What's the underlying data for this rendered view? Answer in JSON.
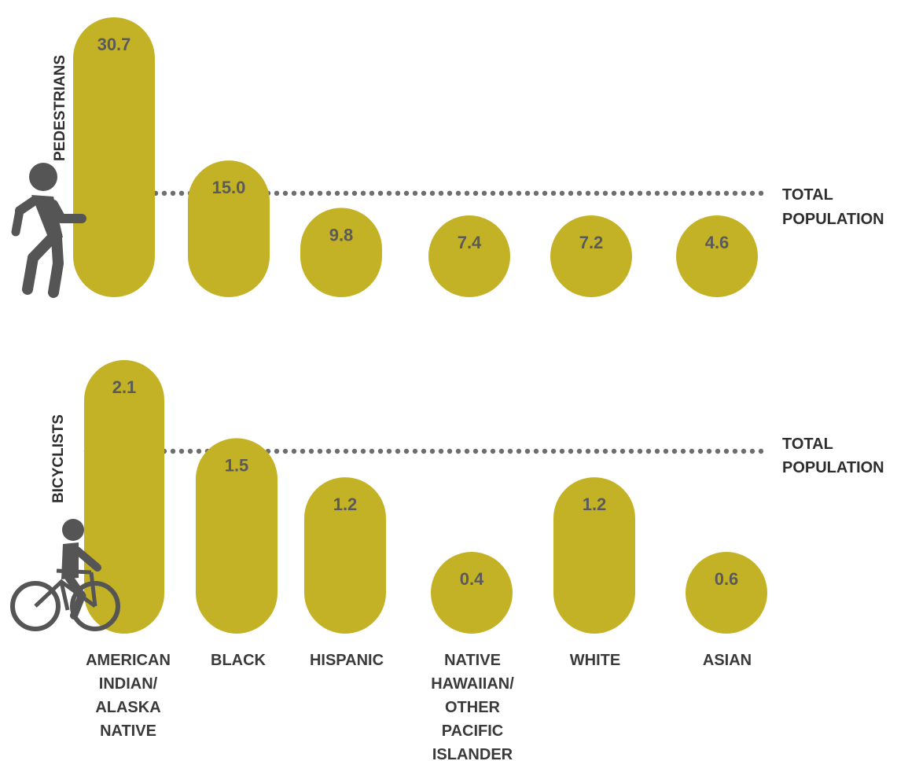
{
  "colors": {
    "bar": "#c4b226",
    "text": "#3a3a3a",
    "value_text": "#5a5a5a",
    "dots": "#555555",
    "icon": "#555555"
  },
  "icons": [
    "pedestrian-icon",
    "bicyclist-icon"
  ],
  "chart_data": [
    {
      "type": "bar",
      "label": "PEDESTRIANS",
      "categories": [
        "AMERICAN INDIAN/ ALASKA NATIVE",
        "BLACK",
        "HISPANIC",
        "NATIVE HAWAIIAN/ OTHER PACIFIC ISLANDER",
        "WHITE",
        "ASIAN"
      ],
      "values": [
        30.7,
        15.0,
        9.8,
        7.4,
        7.2,
        4.6
      ],
      "value_labels": [
        "30.7",
        "15.0",
        "9.8",
        "7.4",
        "7.2",
        "4.6"
      ],
      "reference_line": {
        "label_lines": [
          "TOTAL",
          "POPULATION"
        ],
        "value": 11.4
      },
      "grid": false
    },
    {
      "type": "bar",
      "label": "BICYCLISTS",
      "categories": [
        "AMERICAN INDIAN/ ALASKA NATIVE",
        "BLACK",
        "HISPANIC",
        "NATIVE HAWAIIAN/ OTHER PACIFIC ISLANDER",
        "WHITE",
        "ASIAN"
      ],
      "values": [
        2.1,
        1.5,
        1.2,
        0.4,
        1.2,
        0.6
      ],
      "value_labels": [
        "2.1",
        "1.5",
        "1.2",
        "0.4",
        "1.2",
        "0.6"
      ],
      "reference_line": {
        "label_lines": [
          "TOTAL",
          "POPULATION"
        ],
        "value": 1.4
      },
      "grid": false
    }
  ],
  "category_label_lines": [
    [
      "AMERICAN",
      "INDIAN/",
      "ALASKA",
      "NATIVE"
    ],
    [
      "BLACK"
    ],
    [
      "HISPANIC"
    ],
    [
      "NATIVE",
      "HAWAIIAN/",
      "OTHER",
      "PACIFIC",
      "ISLANDER"
    ],
    [
      "WHITE"
    ],
    [
      "ASIAN"
    ]
  ]
}
